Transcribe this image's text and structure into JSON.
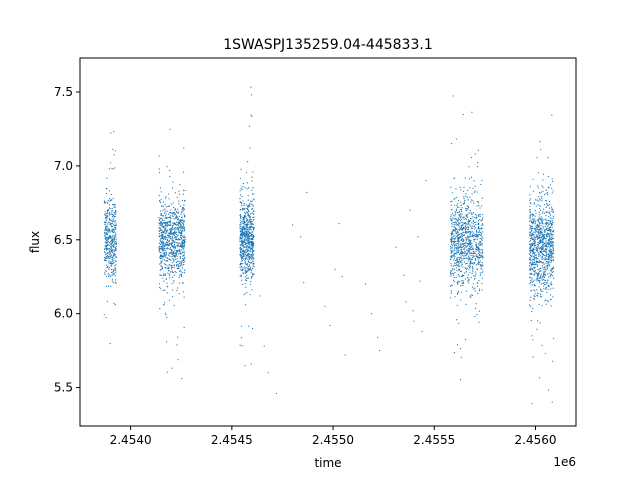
{
  "chart_data": {
    "type": "scatter",
    "title": "1SWASPJ135259.04-445833.1",
    "xlabel": "time",
    "ylabel": "flux",
    "x_offset_label": "1e6",
    "xlim": [
      2453750,
      2456200
    ],
    "ylim": [
      5.24,
      7.73
    ],
    "x_ticks": [
      2454000,
      2454500,
      2455000,
      2455500,
      2456000
    ],
    "x_tick_labels": [
      "2.4540",
      "2.4545",
      "2.4550",
      "2.4555",
      "2.4560"
    ],
    "y_ticks": [
      5.5,
      6.0,
      6.5,
      7.0,
      7.5
    ],
    "y_tick_labels": [
      "5.5",
      "6.0",
      "6.5",
      "7.0",
      "7.5"
    ],
    "grid": false,
    "marker_color": "#1f77b4",
    "seasons": [
      {
        "x_start": 2453870,
        "x_end": 2453930,
        "center": 6.5,
        "spread": 0.13,
        "n": 420
      },
      {
        "x_start": 2454140,
        "x_end": 2454270,
        "center": 6.5,
        "spread": 0.14,
        "n": 850
      },
      {
        "x_start": 2454540,
        "x_end": 2454610,
        "center": 6.5,
        "spread": 0.14,
        "n": 700
      },
      {
        "x_start": 2455580,
        "x_end": 2455740,
        "center": 6.48,
        "spread": 0.15,
        "n": 950
      },
      {
        "x_start": 2455970,
        "x_end": 2456090,
        "center": 6.46,
        "spread": 0.16,
        "n": 950
      }
    ],
    "sparse_points": [
      [
        2454640,
        6.12
      ],
      [
        2454660,
        5.78
      ],
      [
        2454680,
        5.6
      ],
      [
        2454720,
        5.46
      ],
      [
        2454800,
        6.6
      ],
      [
        2454840,
        6.52
      ],
      [
        2454855,
        6.21
      ],
      [
        2454870,
        6.82
      ],
      [
        2454960,
        6.05
      ],
      [
        2454985,
        5.92
      ],
      [
        2455010,
        6.3
      ],
      [
        2455030,
        6.61
      ],
      [
        2455045,
        6.25
      ],
      [
        2455060,
        5.72
      ],
      [
        2455160,
        6.2
      ],
      [
        2455190,
        6.0
      ],
      [
        2455220,
        5.84
      ],
      [
        2455230,
        5.75
      ],
      [
        2455310,
        6.45
      ],
      [
        2455350,
        6.26
      ],
      [
        2455360,
        6.08
      ],
      [
        2455380,
        6.7
      ],
      [
        2455395,
        6.02
      ],
      [
        2455400,
        5.95
      ],
      [
        2455420,
        6.52
      ],
      [
        2455430,
        6.22
      ],
      [
        2455440,
        5.88
      ],
      [
        2455460,
        6.9
      ]
    ]
  }
}
